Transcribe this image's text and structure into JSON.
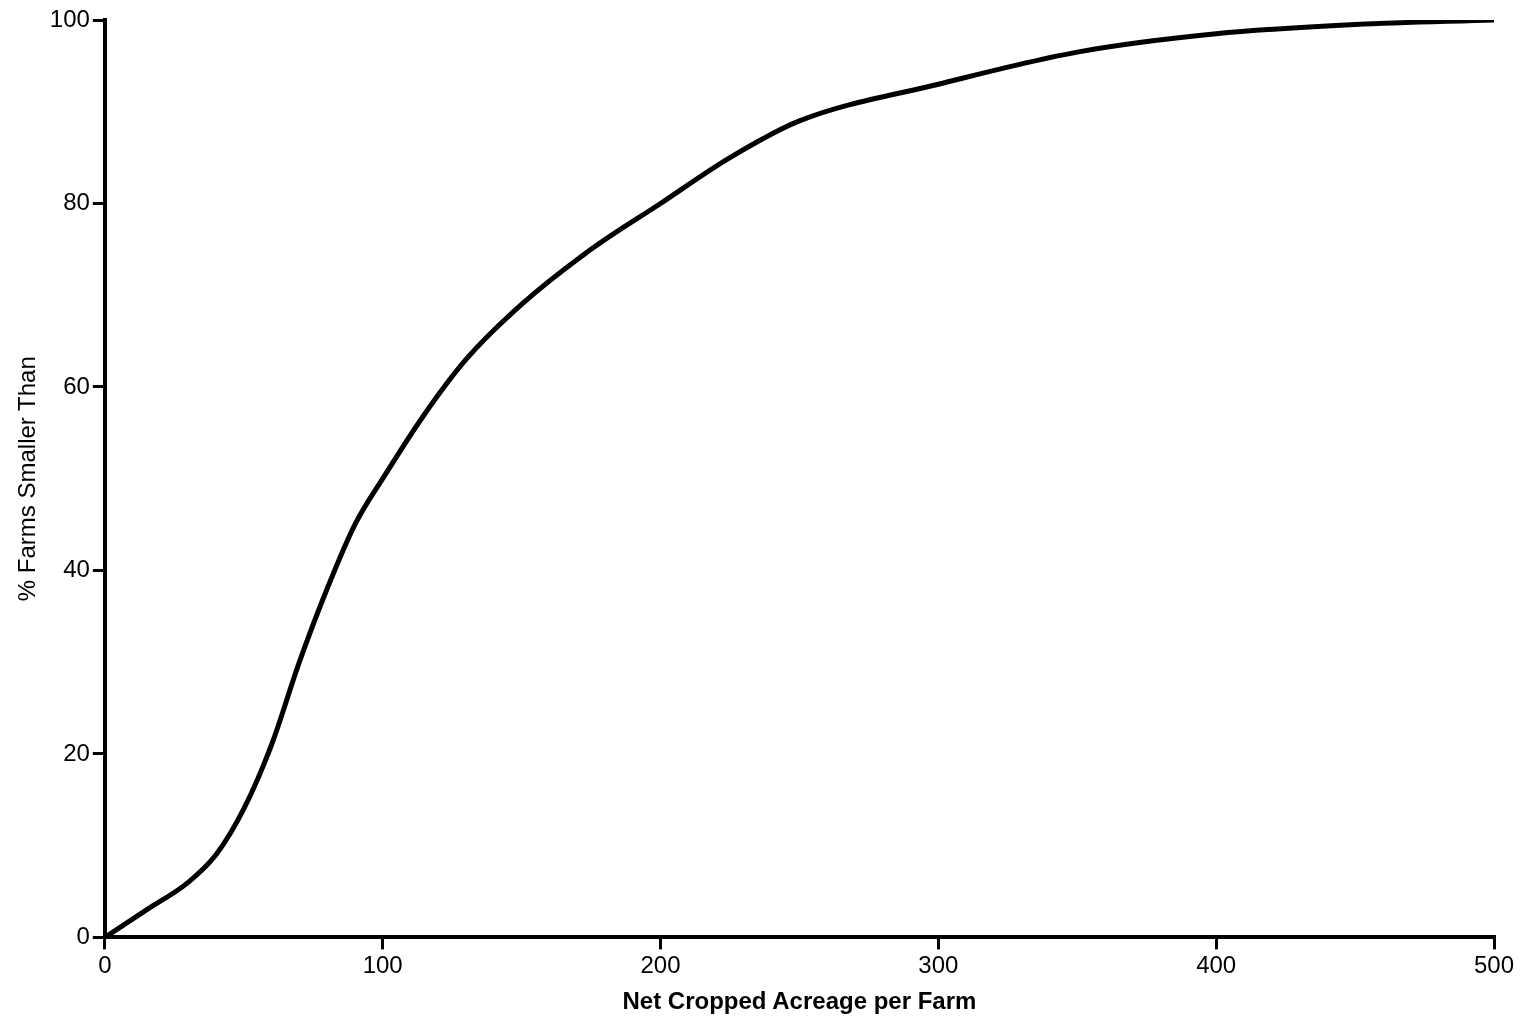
{
  "chart_data": {
    "type": "line",
    "xlabel": "Net Cropped Acreage per Farm",
    "ylabel": "% Farms Smaller Than",
    "x": [
      0,
      15,
      30,
      40,
      50,
      60,
      70,
      80,
      90,
      100,
      115,
      130,
      150,
      175,
      200,
      225,
      250,
      300,
      350,
      400,
      450,
      500
    ],
    "series": [
      {
        "color": "#000000",
        "values": [
          0,
          3,
          6,
          9,
          14,
          21,
          30,
          38,
          45,
          50,
          57,
          63,
          69,
          75,
          80,
          85,
          89,
          93,
          96.5,
          98.5,
          99.5,
          100
        ]
      }
    ],
    "xlim": [
      0,
      500
    ],
    "xticks": [
      0,
      100,
      200,
      300,
      400,
      500
    ],
    "ylim": [
      0,
      100
    ],
    "yticks": [
      0,
      20,
      40,
      60,
      80,
      100
    ],
    "grid": false,
    "legend": false,
    "marker": "none",
    "line_style": "solid"
  }
}
